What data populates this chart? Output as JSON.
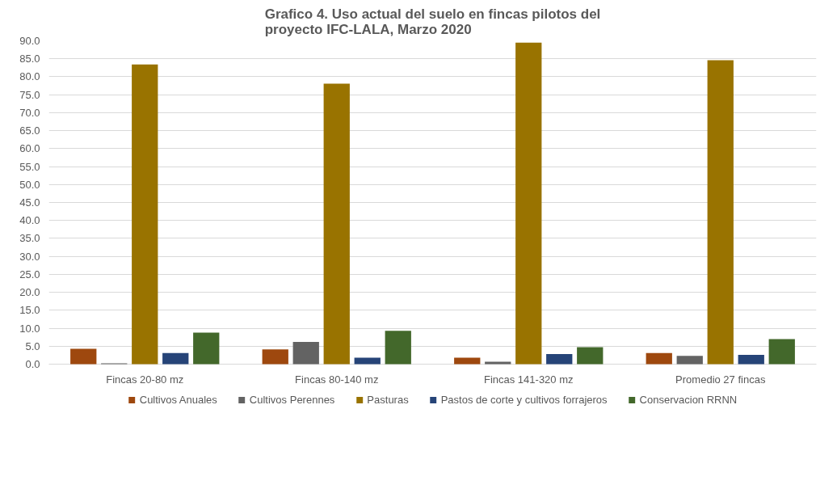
{
  "chart_data": {
    "type": "bar",
    "title": "Grafico 4. Uso actual del suelo en fincas pilotos del\nproyecto IFC-LALA, Marzo 2020",
    "categories": [
      "Fincas 20-80 mz",
      "Fincas 80-140 mz",
      "Fincas 141-320 mz",
      "Promedio 27 fincas"
    ],
    "series": [
      {
        "name": "Cultivos Anuales",
        "color": "#9e480e",
        "values": [
          4.3,
          4.1,
          1.8,
          3.1
        ]
      },
      {
        "name": "Cultivos Perennes",
        "color": "#636363",
        "values": [
          0.2,
          6.2,
          0.7,
          2.3
        ]
      },
      {
        "name": "Pasturas",
        "color": "#997300",
        "values": [
          83.4,
          78.1,
          89.5,
          84.6
        ]
      },
      {
        "name": "Pastos de corte y cultivos forrajeros",
        "color": "#264478",
        "values": [
          3.1,
          1.8,
          2.8,
          2.6
        ]
      },
      {
        "name": "Conservacion RRNN",
        "color": "#43682b",
        "values": [
          8.8,
          9.3,
          4.7,
          7.0
        ]
      }
    ],
    "ylim": [
      0,
      90
    ],
    "yticks": [
      {
        "value": 0,
        "label": "0.0"
      },
      {
        "value": 5,
        "label": "5.0"
      },
      {
        "value": 10,
        "label": "10.0"
      },
      {
        "value": 15,
        "label": "15.0"
      },
      {
        "value": 20,
        "label": "20.0"
      },
      {
        "value": 25,
        "label": "25.0"
      },
      {
        "value": 30,
        "label": "30.0"
      },
      {
        "value": 35,
        "label": "35.0"
      },
      {
        "value": 40,
        "label": "40.0"
      },
      {
        "value": 45,
        "label": "45.0"
      },
      {
        "value": 50,
        "label": "50.0"
      },
      {
        "value": 55,
        "label": "55.0"
      },
      {
        "value": 60,
        "label": "60.0"
      },
      {
        "value": 65,
        "label": "65.0"
      },
      {
        "value": 70,
        "label": "70.0"
      },
      {
        "value": 75,
        "label": "75.0"
      },
      {
        "value": 80,
        "label": "80.0"
      },
      {
        "value": 85,
        "label": "85.0"
      },
      {
        "value": 90,
        "label": "90.0"
      }
    ],
    "grid": "y",
    "legend": "bottom"
  }
}
